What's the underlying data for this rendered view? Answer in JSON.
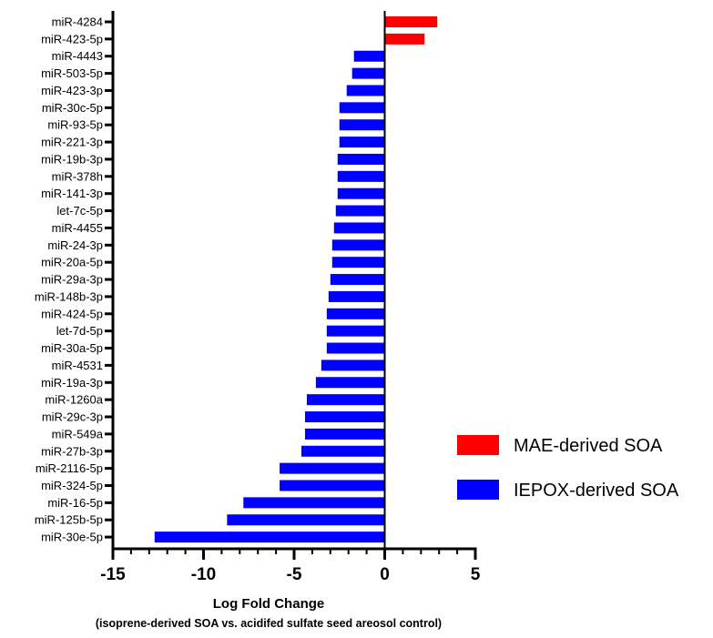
{
  "chart_data": {
    "type": "bar",
    "orientation": "horizontal",
    "categories": [
      "miR-4284",
      "miR-423-5p",
      "miR-4443",
      "miR-503-5p",
      "miR-423-3p",
      "miR-30c-5p",
      "miR-93-5p",
      "miR-221-3p",
      "miR-19b-3p",
      "miR-378h",
      "miR-141-3p",
      "let-7c-5p",
      "miR-4455",
      "miR-24-3p",
      "miR-20a-5p",
      "miR-29a-3p",
      "miR-148b-3p",
      "miR-424-5p",
      "let-7d-5p",
      "miR-30a-5p",
      "miR-4531",
      "miR-19a-3p",
      "miR-1260a",
      "miR-29c-3p",
      "miR-549a",
      "miR-27b-3p",
      "miR-2116-5p",
      "miR-324-5p",
      "miR-16-5p",
      "miR-125b-5p",
      "miR-30e-5p"
    ],
    "series": [
      {
        "name": "MAE-derived SOA",
        "color": "#ff0000",
        "values": [
          2.9,
          2.2,
          null,
          null,
          null,
          null,
          null,
          null,
          null,
          null,
          null,
          null,
          null,
          null,
          null,
          null,
          null,
          null,
          null,
          null,
          null,
          null,
          null,
          null,
          null,
          null,
          null,
          null,
          null,
          null,
          null
        ]
      },
      {
        "name": "IEPOX-derived SOA",
        "color": "#0000ff",
        "values": [
          null,
          null,
          -1.7,
          -1.8,
          -2.1,
          -2.5,
          -2.5,
          -2.5,
          -2.6,
          -2.6,
          -2.6,
          -2.7,
          -2.8,
          -2.9,
          -2.9,
          -3.0,
          -3.1,
          -3.2,
          -3.2,
          -3.2,
          -3.5,
          -3.8,
          -4.3,
          -4.4,
          -4.4,
          -4.6,
          -5.8,
          -5.8,
          -7.8,
          -8.7,
          -12.7
        ]
      }
    ],
    "xlabel": "Log Fold Change",
    "xlabel_sub": "(isoprene-derived SOA vs. acidifed sulfate seed areosol control)",
    "xlim": [
      -15,
      5
    ],
    "xticks": [
      "-15",
      "-10",
      "-5",
      "0",
      "5"
    ],
    "grid": false,
    "legend_position": "right"
  }
}
